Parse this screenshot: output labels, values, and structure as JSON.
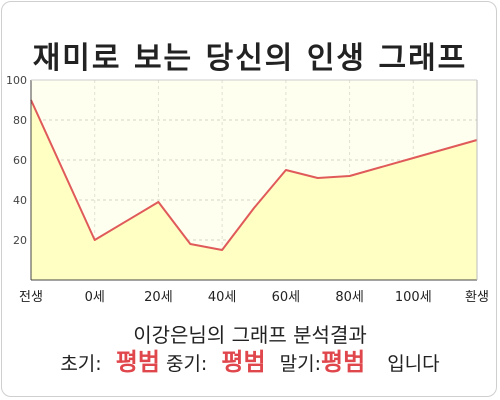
{
  "title": "재미로 보는 당신의 인생 그래프",
  "summary": "이강은님의 그래프 분석결과",
  "result": {
    "early_label": "초기:",
    "early_value": "평범",
    "mid_label": "중기:",
    "mid_value": "평범",
    "late_label": "말기:",
    "late_value": "평범",
    "suffix": "입니다"
  },
  "colors": {
    "line": "#e05a5a",
    "fill": "#ffffc4",
    "plot_background": "#fffff0",
    "result_value": "#e0474c"
  },
  "chart_data": {
    "type": "area",
    "title": "재미로 보는 당신의 인생 그래프",
    "categories": [
      "전생",
      "0세",
      "20세",
      "40세",
      "60세",
      "80세",
      "100세",
      "환생"
    ],
    "x": [
      -20,
      0,
      20,
      40,
      60,
      80,
      100,
      120
    ],
    "series": [
      {
        "x": [
          -20,
          0,
          20,
          30,
          40,
          50,
          60,
          70,
          80,
          100,
          120
        ],
        "values": [
          90,
          20,
          39,
          18,
          15,
          36,
          55,
          51,
          52,
          61,
          70
        ]
      }
    ],
    "xlim": [
      -20,
      120
    ],
    "ylim": [
      0,
      100
    ],
    "yticks": [
      20,
      40,
      60,
      80,
      100
    ],
    "grid": true,
    "legend": "none"
  }
}
